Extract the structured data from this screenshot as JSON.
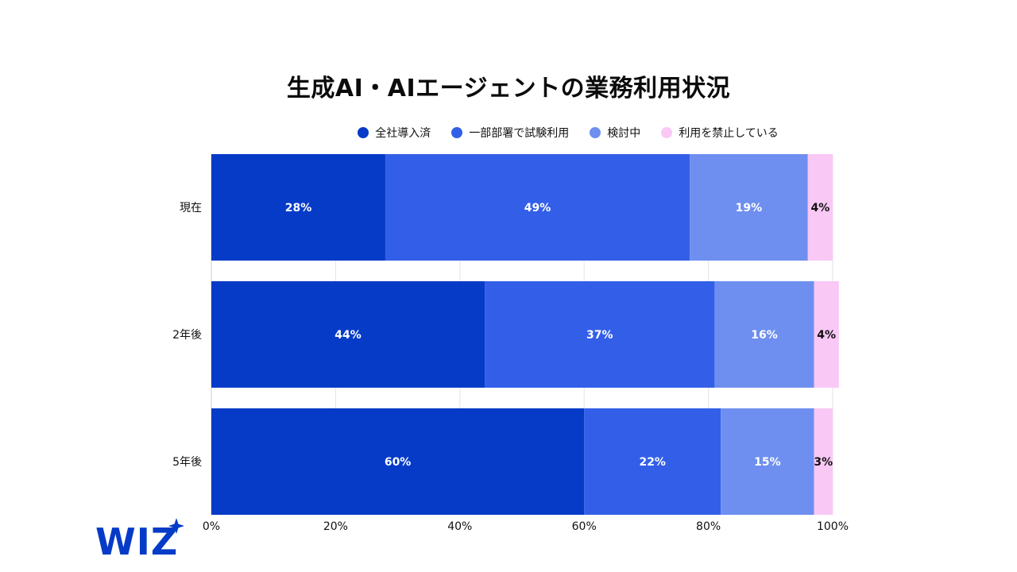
{
  "chart_data": {
    "type": "bar",
    "orientation": "horizontal",
    "stacked": true,
    "title": "生成AI・AIエージェントの業務利用状況",
    "categories": [
      "現在",
      "2年後",
      "5年後"
    ],
    "series": [
      {
        "name": "全社導入済",
        "color": "#063bc8",
        "values": [
          28,
          44,
          60
        ],
        "labels": [
          "28%",
          "44%",
          "60%"
        ],
        "label_color": "#ffffff"
      },
      {
        "name": "一部部署で試験利用",
        "color": "#335fe8",
        "values": [
          49,
          37,
          22
        ],
        "labels": [
          "49%",
          "37%",
          "22%"
        ],
        "label_color": "#ffffff"
      },
      {
        "name": "検討中",
        "color": "#6e8fef",
        "values": [
          19,
          16,
          15
        ],
        "labels": [
          "19%",
          "16%",
          "15%"
        ],
        "label_color": "#ffffff"
      },
      {
        "name": "利用を禁止している",
        "color": "#f9c8f5",
        "values": [
          4,
          4,
          3
        ],
        "labels": [
          "4%",
          "4%",
          "3%"
        ],
        "label_color": "#111111"
      }
    ],
    "xlim": [
      0,
      100
    ],
    "xticks": [
      "0%",
      "20%",
      "40%",
      "60%",
      "80%",
      "100%"
    ],
    "grid": true,
    "legend_position": "top"
  },
  "logo": {
    "text": "WIZ",
    "color": "#063bc8"
  }
}
